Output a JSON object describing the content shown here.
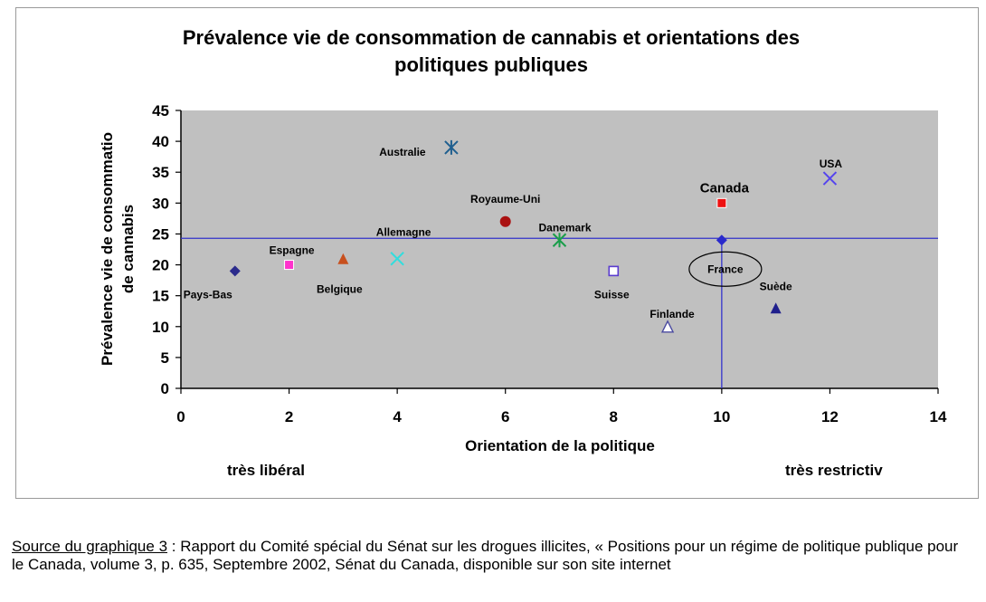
{
  "chart_data": {
    "type": "scatter",
    "title_line1": "Prévalence vie de consommation de cannabis et orientations des",
    "title_line2": "politiques publiques",
    "xlabel": "Orientation de la politique",
    "ylabel_line1": "Prévalence vie de consommatio",
    "ylabel_line2": "de cannabis",
    "xlim": [
      0,
      14
    ],
    "ylim": [
      0,
      45
    ],
    "xticks": [
      0,
      2,
      4,
      6,
      8,
      10,
      12,
      14
    ],
    "yticks": [
      0,
      5,
      10,
      15,
      20,
      25,
      30,
      35,
      40,
      45
    ],
    "xtick_labels": [
      "0",
      "2",
      "4",
      "6",
      "8",
      "10",
      "12",
      "14"
    ],
    "ytick_labels": [
      "0",
      "5",
      "10",
      "15",
      "20",
      "25",
      "30",
      "35",
      "40",
      "45"
    ],
    "annot_left": "très libéral",
    "annot_right": "très restrictiv",
    "plot_background": "#c0c0c0",
    "reference_line_color": "#3333cc",
    "reference_lines": {
      "y": 24.3,
      "x": 10
    },
    "series": [
      {
        "name": "Pays-Bas",
        "x": 1,
        "y": 19,
        "marker": "diamond",
        "color": "#2b2b8c"
      },
      {
        "name": "Espagne",
        "x": 2,
        "y": 20,
        "marker": "square",
        "color": "#ff33cc"
      },
      {
        "name": "Belgique",
        "x": 3,
        "y": 21,
        "marker": "triangle",
        "color": "#c8501e"
      },
      {
        "name": "Allemagne",
        "x": 4,
        "y": 21,
        "marker": "x",
        "color": "#33dddd"
      },
      {
        "name": "Australie",
        "x": 5,
        "y": 39,
        "marker": "asterisk",
        "color": "#1f5f8f"
      },
      {
        "name": "Royaume-Uni",
        "x": 6,
        "y": 27,
        "marker": "circle",
        "color": "#aa1111"
      },
      {
        "name": "Danemark",
        "x": 7,
        "y": 24,
        "marker": "asterisk",
        "color": "#1a9e4a"
      },
      {
        "name": "Suisse",
        "x": 8,
        "y": 19,
        "marker": "open-square",
        "color": "#5a3ccf"
      },
      {
        "name": "Finlande",
        "x": 9,
        "y": 10,
        "marker": "open-triangle",
        "color": "#4a4aa0"
      },
      {
        "name": "France",
        "x": 10,
        "y": 24,
        "marker": "diamond",
        "color": "#2a2acc"
      },
      {
        "name": "Canada",
        "x": 10,
        "y": 30,
        "marker": "square",
        "color": "#ee1111"
      },
      {
        "name": "Suède",
        "x": 11,
        "y": 13,
        "marker": "triangle",
        "color": "#1f1f8c"
      },
      {
        "name": "USA",
        "x": 12,
        "y": 34,
        "marker": "x",
        "color": "#5544ee"
      }
    ]
  },
  "source": {
    "link_text": "Source du graphique 3",
    "text": " : Rapport du Comité spécial du Sénat sur les drogues illicites, « Positions pour un régime de politique publique pour le Canada, volume 3, p. 635, Septembre 2002, Sénat du Canada, disponible sur son site internet"
  }
}
